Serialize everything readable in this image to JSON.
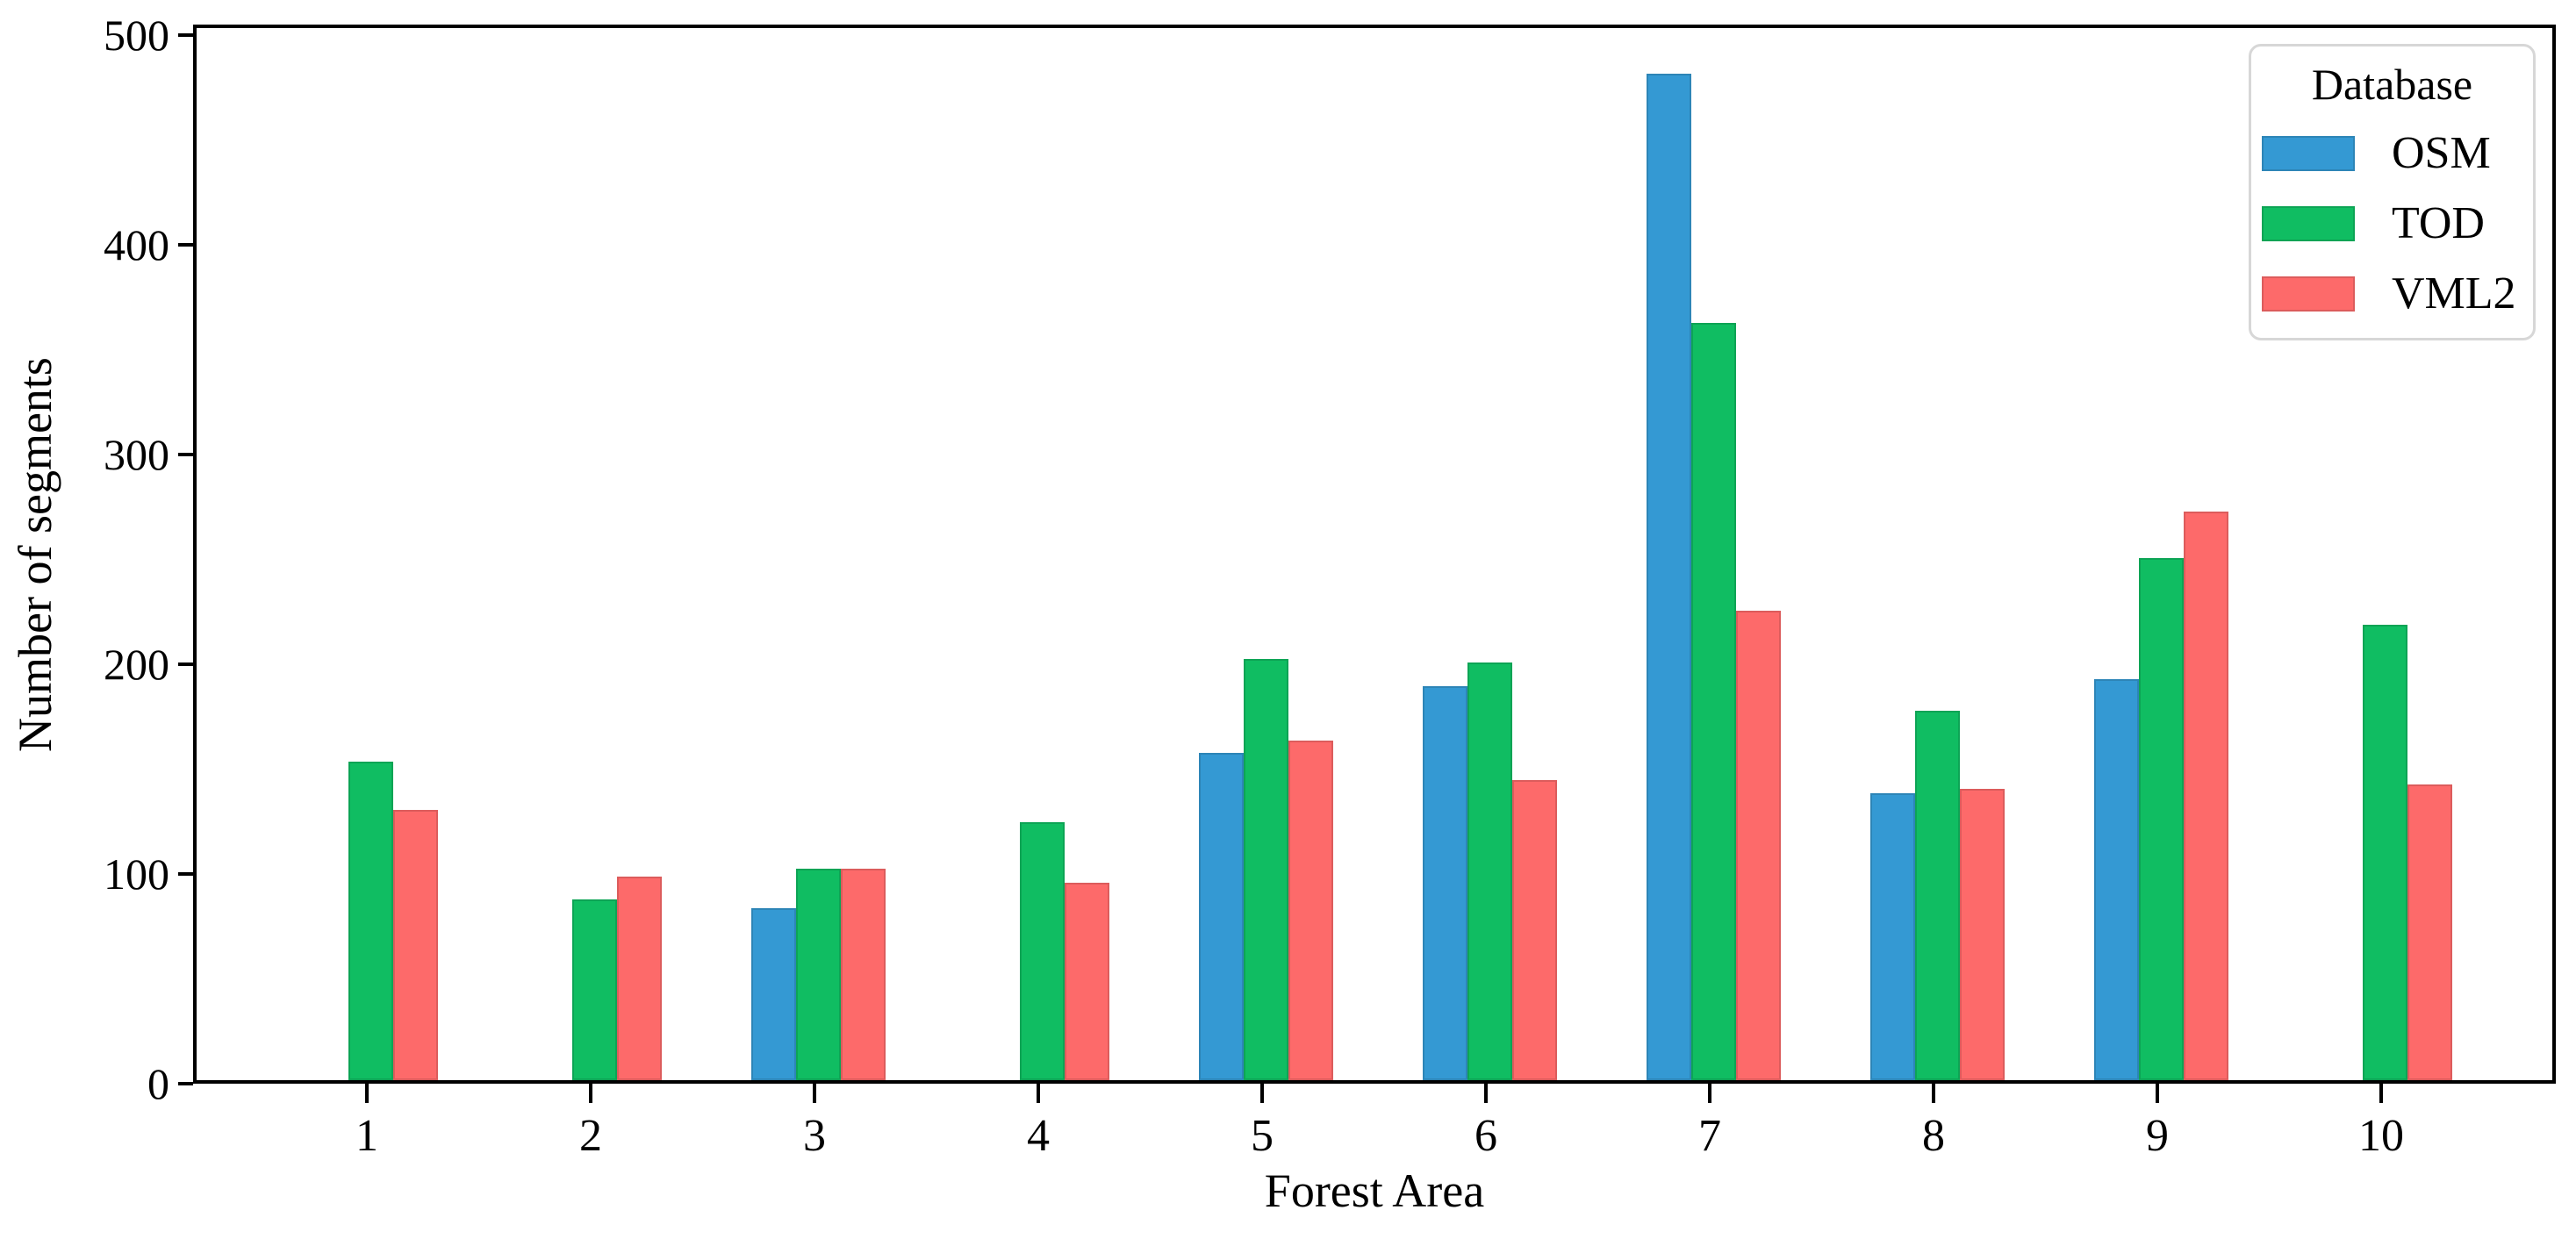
{
  "chart_data": {
    "type": "bar",
    "title": "",
    "xlabel": "Forest Area",
    "ylabel": "Number of segments",
    "categories": [
      "1",
      "2",
      "3",
      "4",
      "5",
      "6",
      "7",
      "8",
      "9",
      "10"
    ],
    "series": [
      {
        "name": "OSM",
        "color": "#3499d3",
        "values": [
          0,
          0,
          82,
          0,
          156,
          188,
          480,
          137,
          191,
          0
        ]
      },
      {
        "name": "TOD",
        "color": "#10bd62",
        "values": [
          152,
          86,
          101,
          123,
          201,
          199,
          361,
          176,
          249,
          217
        ]
      },
      {
        "name": "VML2",
        "color": "#fd6a6a",
        "values": [
          129,
          97,
          101,
          94,
          162,
          143,
          224,
          139,
          271,
          141
        ]
      }
    ],
    "ylim": [
      0,
      505
    ],
    "yticks": [
      0,
      100,
      200,
      300,
      400,
      500
    ],
    "legend": {
      "title": "Database",
      "position": "upper right"
    },
    "grid": false,
    "axis_color": "#000000",
    "background_color": "#ffffff"
  }
}
